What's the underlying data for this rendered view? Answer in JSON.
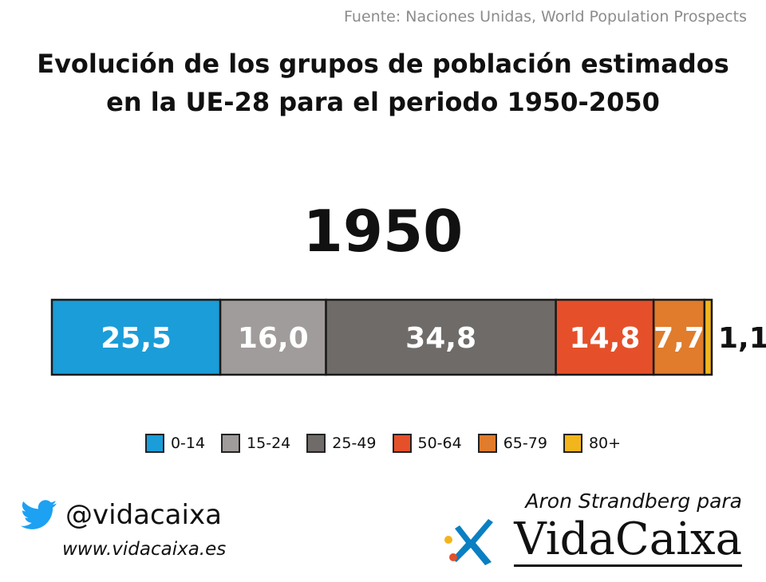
{
  "source": "Fuente: Naciones Unidas, World Population Prospects",
  "title": {
    "line1": "Evolución de los grupos de población estimados",
    "line2": "en la UE-28 para el periodo 1950-2050"
  },
  "colors": {
    "group_0_14": "#1a9dd9",
    "group_15_24": "#a09c9b",
    "group_25_49": "#6f6b69",
    "group_50_64": "#e5502a",
    "group_65_79": "#e07c2c",
    "group_80_plus": "#f2b51c",
    "twitter": "#1da1f2",
    "brand_blue": "#0a7fc2"
  },
  "social": {
    "handle": "@vidacaixa",
    "website": "www.vidacaixa.es",
    "icon": "twitter-bird-icon"
  },
  "credit": {
    "author": "Aron Strandberg para",
    "brand": "VidaCaixa",
    "logo_icon": "caixa-star-icon"
  },
  "chart_data": {
    "type": "bar",
    "orientation": "horizontal-stacked-100",
    "title": "Evolución de los grupos de población estimados en la UE-28 para el periodo 1950-2050",
    "year": "1950",
    "unit": "%",
    "series": [
      {
        "name": "0-14",
        "value": 25.5,
        "label": "25,5"
      },
      {
        "name": "15-24",
        "value": 16.0,
        "label": "16,0"
      },
      {
        "name": "25-49",
        "value": 34.8,
        "label": "34,8"
      },
      {
        "name": "50-64",
        "value": 14.8,
        "label": "14,8"
      },
      {
        "name": "65-79",
        "value": 7.7,
        "label": "7,7"
      },
      {
        "name": "80+",
        "value": 1.1,
        "label": "1,1"
      }
    ],
    "legend_position": "bottom"
  }
}
